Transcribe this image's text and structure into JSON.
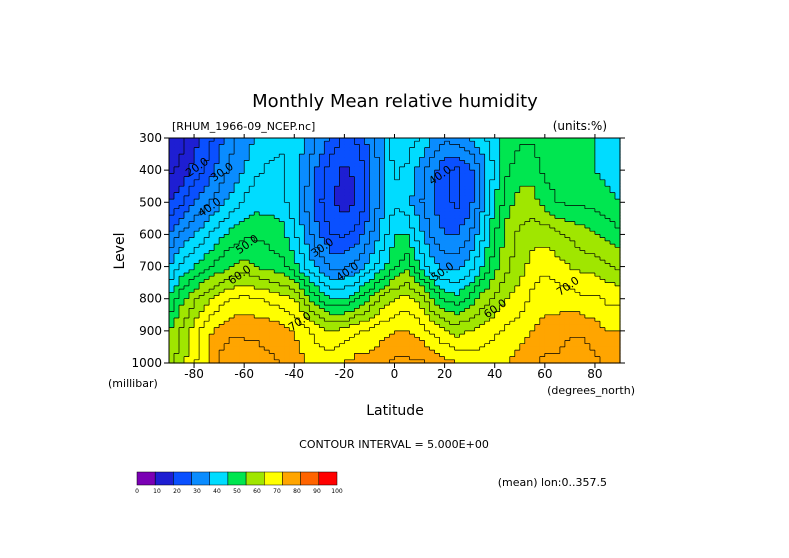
{
  "chart_data": {
    "type": "heatmap",
    "title": "Monthly Mean relative humidity",
    "dataset_label": "[RHUM_1966-09_NCEP.nc]",
    "units_label": "(units:%)",
    "xlabel": "Latitude",
    "xunits": "(degrees_north)",
    "ylabel": "Level",
    "yunits": "(millibar)",
    "xlim": [
      -90,
      90
    ],
    "ylim": [
      1000,
      300
    ],
    "x_ticks": [
      "-80",
      "-60",
      "-40",
      "-20",
      "0",
      "20",
      "40",
      "60",
      "80"
    ],
    "x_tick_values": [
      -80,
      -60,
      -40,
      -20,
      0,
      20,
      40,
      60,
      80
    ],
    "y_ticks": [
      "300",
      "400",
      "500",
      "600",
      "700",
      "800",
      "900",
      "1000"
    ],
    "y_tick_values": [
      300,
      400,
      500,
      600,
      700,
      800,
      900,
      1000
    ],
    "contour_interval_text": "CONTOUR INTERVAL = 5.000E+00",
    "averaging_note": "(mean) lon:0..357.5",
    "colorbar": {
      "labels": [
        "0",
        "10",
        "20",
        "30",
        "40",
        "50",
        "60",
        "70",
        "80",
        "90",
        "100"
      ],
      "colors": [
        "#7a00b4",
        "#1e1ed2",
        "#0a50ff",
        "#0a8cff",
        "#00dcff",
        "#00e650",
        "#a0e600",
        "#ffff00",
        "#ffa500",
        "#ff6400",
        "#ff0000"
      ]
    },
    "contour_labels": [
      {
        "text": "20.0",
        "lat": -78,
        "lev": 400
      },
      {
        "text": "30.0",
        "lat": -68,
        "lev": 415
      },
      {
        "text": "40.0",
        "lat": -73,
        "lev": 525
      },
      {
        "text": "50.0",
        "lat": -58,
        "lev": 640
      },
      {
        "text": "60.0",
        "lat": -61,
        "lev": 735
      },
      {
        "text": "70.0",
        "lat": -37,
        "lev": 880
      },
      {
        "text": "30.0",
        "lat": -28,
        "lev": 650
      },
      {
        "text": "40.0",
        "lat": -18,
        "lev": 725
      },
      {
        "text": "40.0",
        "lat": 19,
        "lev": 425
      },
      {
        "text": "50.0",
        "lat": 20,
        "lev": 725
      },
      {
        "text": "60.0",
        "lat": 41,
        "lev": 840
      },
      {
        "text": "70.0",
        "lat": 70,
        "lev": 770
      }
    ],
    "profiles": {
      "lats": [
        -90,
        -85,
        -80,
        -75,
        -70,
        -65,
        -60,
        -55,
        -50,
        -45,
        -40,
        -35,
        -30,
        -25,
        -20,
        -15,
        -10,
        -5,
        0,
        5,
        10,
        15,
        20,
        25,
        30,
        35,
        40,
        45,
        50,
        55,
        60,
        65,
        70,
        75,
        80,
        85,
        90
      ],
      "levels": [
        300,
        400,
        500,
        600,
        700,
        800,
        900,
        1000
      ],
      "rh_300": [
        12,
        14,
        18,
        22,
        28,
        34,
        38,
        40,
        42,
        44,
        43,
        40,
        34,
        28,
        24,
        26,
        32,
        40,
        48,
        48,
        45,
        40,
        36,
        38,
        40,
        44,
        48,
        52,
        54,
        54,
        50,
        50,
        52,
        52,
        50,
        48,
        46
      ],
      "rh_400": [
        14,
        16,
        22,
        26,
        32,
        36,
        40,
        44,
        46,
        46,
        43,
        36,
        28,
        22,
        19,
        21,
        28,
        38,
        46,
        44,
        38,
        32,
        26,
        24,
        28,
        36,
        46,
        54,
        58,
        58,
        54,
        52,
        52,
        52,
        50,
        48,
        46
      ],
      "rh_500": [
        20,
        24,
        30,
        34,
        38,
        42,
        46,
        48,
        48,
        47,
        42,
        34,
        26,
        20,
        18,
        20,
        28,
        38,
        44,
        42,
        36,
        30,
        26,
        24,
        28,
        38,
        50,
        58,
        62,
        62,
        58,
        55,
        54,
        54,
        53,
        52,
        50
      ],
      "rh_600": [
        30,
        36,
        40,
        44,
        48,
        52,
        54,
        54,
        53,
        52,
        46,
        38,
        30,
        25,
        24,
        27,
        34,
        42,
        50,
        50,
        42,
        34,
        30,
        30,
        34,
        44,
        54,
        62,
        66,
        68,
        68,
        66,
        64,
        62,
        60,
        58,
        56
      ],
      "rh_700": [
        40,
        46,
        50,
        54,
        57,
        60,
        62,
        60,
        58,
        56,
        52,
        44,
        38,
        34,
        34,
        37,
        42,
        48,
        54,
        58,
        50,
        42,
        38,
        38,
        42,
        50,
        58,
        64,
        68,
        72,
        74,
        72,
        70,
        68,
        68,
        66,
        64
      ],
      "rh_800": [
        50,
        58,
        64,
        68,
        72,
        75,
        76,
        75,
        74,
        72,
        70,
        62,
        55,
        50,
        50,
        54,
        60,
        66,
        70,
        72,
        68,
        60,
        54,
        52,
        56,
        62,
        66,
        70,
        72,
        76,
        78,
        78,
        78,
        76,
        76,
        74,
        74
      ],
      "rh_900": [
        60,
        66,
        72,
        78,
        82,
        84,
        84,
        84,
        83,
        82,
        80,
        76,
        72,
        70,
        72,
        74,
        76,
        78,
        80,
        80,
        78,
        74,
        70,
        68,
        70,
        72,
        74,
        76,
        78,
        80,
        82,
        82,
        84,
        84,
        82,
        80,
        80
      ],
      "rh_1000": [
        62,
        68,
        74,
        80,
        86,
        88,
        88,
        87,
        86,
        85,
        82,
        80,
        78,
        78,
        80,
        82,
        82,
        84,
        86,
        86,
        86,
        84,
        82,
        80,
        78,
        78,
        78,
        80,
        82,
        84,
        86,
        86,
        88,
        88,
        86,
        84,
        84
      ]
    }
  }
}
